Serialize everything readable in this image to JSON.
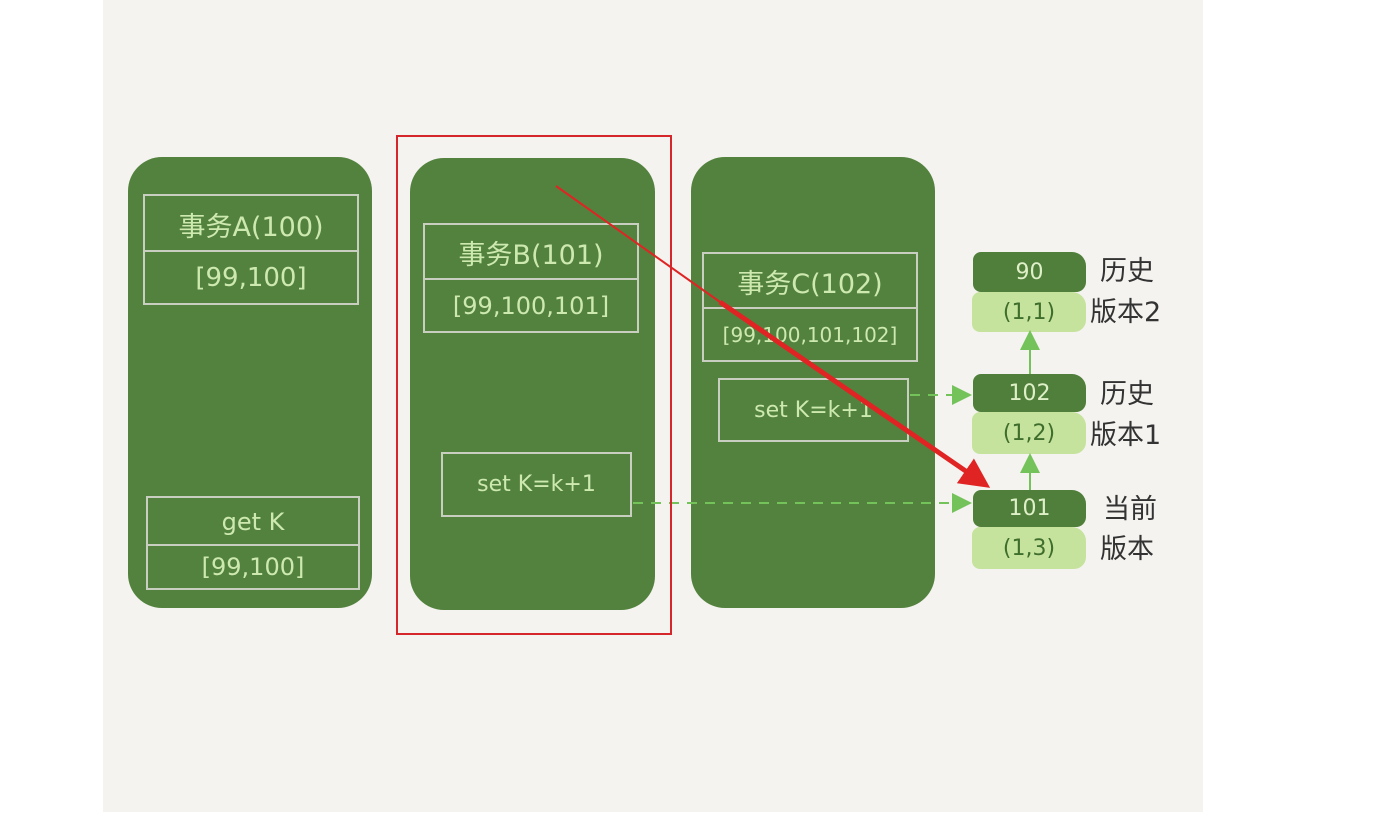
{
  "transactions": {
    "a": {
      "title": "事务A(100)",
      "view": "[99,100]",
      "op": "get K",
      "op_view": "[99,100]"
    },
    "b": {
      "title": "事务B(101)",
      "view": "[99,100,101]",
      "op": "set K=k+1"
    },
    "c": {
      "title": "事务C(102)",
      "view": "[99,100,101,102]",
      "op": "set K=k+1"
    }
  },
  "versions": [
    {
      "value": "90",
      "row": "(1,1)",
      "label_line1": "历史",
      "label_line2": "版本2"
    },
    {
      "value": "102",
      "row": "(1,2)",
      "label_line1": "历史",
      "label_line2": "版本1"
    },
    {
      "value": "101",
      "row": "(1,3)",
      "label_line1": "当前",
      "label_line2": "版本"
    }
  ],
  "colors": {
    "transaction_fill": "#53823e",
    "version_dark": "#4f7f3a",
    "version_light": "#c5e39d",
    "highlight": "#d4262b"
  }
}
